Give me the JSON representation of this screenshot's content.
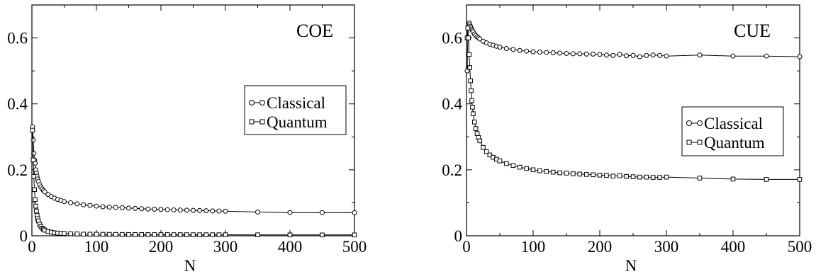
{
  "chart_data": [
    {
      "type": "line",
      "title": "COE",
      "xlabel": "N",
      "ylabel": "",
      "xlim": [
        0,
        500
      ],
      "ylim": [
        0,
        0.7
      ],
      "xticks": [
        "0",
        "100",
        "200",
        "300",
        "400",
        "500"
      ],
      "yticks": [
        "0",
        "0.2",
        "0.4",
        "0.6"
      ],
      "legend_position": "right",
      "series": [
        {
          "name": "Classical",
          "marker": "circle",
          "x": [
            1,
            2,
            3,
            4,
            5,
            6,
            7,
            8,
            9,
            10,
            12,
            14,
            16,
            18,
            20,
            25,
            30,
            35,
            40,
            45,
            50,
            60,
            70,
            80,
            90,
            100,
            110,
            120,
            130,
            140,
            150,
            160,
            170,
            180,
            190,
            200,
            210,
            220,
            230,
            240,
            250,
            260,
            270,
            280,
            290,
            300,
            350,
            400,
            450,
            500
          ],
          "y": [
            0.33,
            0.29,
            0.25,
            0.23,
            0.22,
            0.2,
            0.19,
            0.18,
            0.172,
            0.165,
            0.155,
            0.148,
            0.142,
            0.137,
            0.133,
            0.125,
            0.119,
            0.114,
            0.11,
            0.107,
            0.104,
            0.1,
            0.097,
            0.094,
            0.092,
            0.09,
            0.088,
            0.087,
            0.086,
            0.085,
            0.084,
            0.083,
            0.082,
            0.081,
            0.0805,
            0.08,
            0.079,
            0.0785,
            0.078,
            0.0775,
            0.077,
            0.0765,
            0.076,
            0.0755,
            0.075,
            0.0745,
            0.072,
            0.0705,
            0.07,
            0.07
          ]
        },
        {
          "name": "Quantum",
          "marker": "square",
          "x": [
            1,
            2,
            3,
            4,
            5,
            6,
            7,
            8,
            9,
            10,
            12,
            14,
            16,
            18,
            20,
            25,
            30,
            35,
            40,
            45,
            50,
            60,
            70,
            80,
            90,
            100,
            110,
            120,
            130,
            140,
            150,
            160,
            170,
            180,
            190,
            200,
            210,
            220,
            230,
            240,
            250,
            260,
            270,
            280,
            290,
            300,
            350,
            400,
            450,
            500
          ],
          "y": [
            0.32,
            0.23,
            0.18,
            0.14,
            0.11,
            0.09,
            0.075,
            0.062,
            0.052,
            0.045,
            0.035,
            0.028,
            0.023,
            0.02,
            0.017,
            0.013,
            0.011,
            0.009,
            0.008,
            0.0075,
            0.007,
            0.006,
            0.0055,
            0.005,
            0.0048,
            0.0046,
            0.0044,
            0.0042,
            0.004,
            0.0039,
            0.0038,
            0.0037,
            0.0036,
            0.0035,
            0.0034,
            0.0033,
            0.0033,
            0.0032,
            0.0032,
            0.0031,
            0.0031,
            0.003,
            0.003,
            0.003,
            0.003,
            0.003,
            0.0028,
            0.0026,
            0.0025,
            0.0025
          ]
        }
      ]
    },
    {
      "type": "line",
      "title": "CUE",
      "xlabel": "N",
      "ylabel": "",
      "xlim": [
        0,
        500
      ],
      "ylim": [
        0,
        0.7
      ],
      "xticks": [
        "0",
        "100",
        "200",
        "300",
        "400",
        "500"
      ],
      "yticks": [
        "0",
        "0.2",
        "0.4",
        "0.6"
      ],
      "legend_position": "right",
      "series": [
        {
          "name": "Classical",
          "marker": "circle",
          "x": [
            1,
            2,
            3,
            4,
            5,
            6,
            7,
            8,
            9,
            10,
            12,
            14,
            16,
            18,
            20,
            25,
            30,
            35,
            40,
            45,
            50,
            60,
            70,
            80,
            90,
            100,
            110,
            120,
            130,
            140,
            150,
            160,
            170,
            180,
            190,
            200,
            210,
            220,
            230,
            240,
            250,
            260,
            270,
            280,
            290,
            300,
            350,
            400,
            450,
            500
          ],
          "y": [
            0.5,
            0.6,
            0.64,
            0.645,
            0.64,
            0.635,
            0.63,
            0.625,
            0.622,
            0.618,
            0.612,
            0.607,
            0.603,
            0.6,
            0.597,
            0.59,
            0.585,
            0.581,
            0.578,
            0.575,
            0.572,
            0.568,
            0.565,
            0.562,
            0.56,
            0.558,
            0.557,
            0.556,
            0.555,
            0.554,
            0.553,
            0.552,
            0.552,
            0.551,
            0.551,
            0.55,
            0.548,
            0.547,
            0.55,
            0.546,
            0.547,
            0.543,
            0.547,
            0.548,
            0.547,
            0.545,
            0.548,
            0.545,
            0.545,
            0.543
          ]
        },
        {
          "name": "Quantum",
          "marker": "square",
          "x": [
            1,
            2,
            3,
            4,
            5,
            6,
            7,
            8,
            9,
            10,
            12,
            14,
            16,
            18,
            20,
            25,
            30,
            35,
            40,
            45,
            50,
            60,
            70,
            80,
            90,
            100,
            110,
            120,
            130,
            140,
            150,
            160,
            170,
            180,
            190,
            200,
            210,
            220,
            230,
            240,
            250,
            260,
            270,
            280,
            290,
            300,
            350,
            400,
            450,
            500
          ],
          "y": [
            0.6,
            0.63,
            0.6,
            0.55,
            0.51,
            0.47,
            0.44,
            0.41,
            0.39,
            0.37,
            0.345,
            0.325,
            0.31,
            0.298,
            0.288,
            0.268,
            0.255,
            0.245,
            0.238,
            0.232,
            0.227,
            0.219,
            0.213,
            0.208,
            0.204,
            0.2,
            0.197,
            0.195,
            0.193,
            0.191,
            0.19,
            0.188,
            0.187,
            0.186,
            0.185,
            0.184,
            0.183,
            0.181,
            0.182,
            0.18,
            0.179,
            0.178,
            0.178,
            0.177,
            0.177,
            0.178,
            0.175,
            0.172,
            0.171,
            0.171
          ]
        }
      ]
    }
  ]
}
